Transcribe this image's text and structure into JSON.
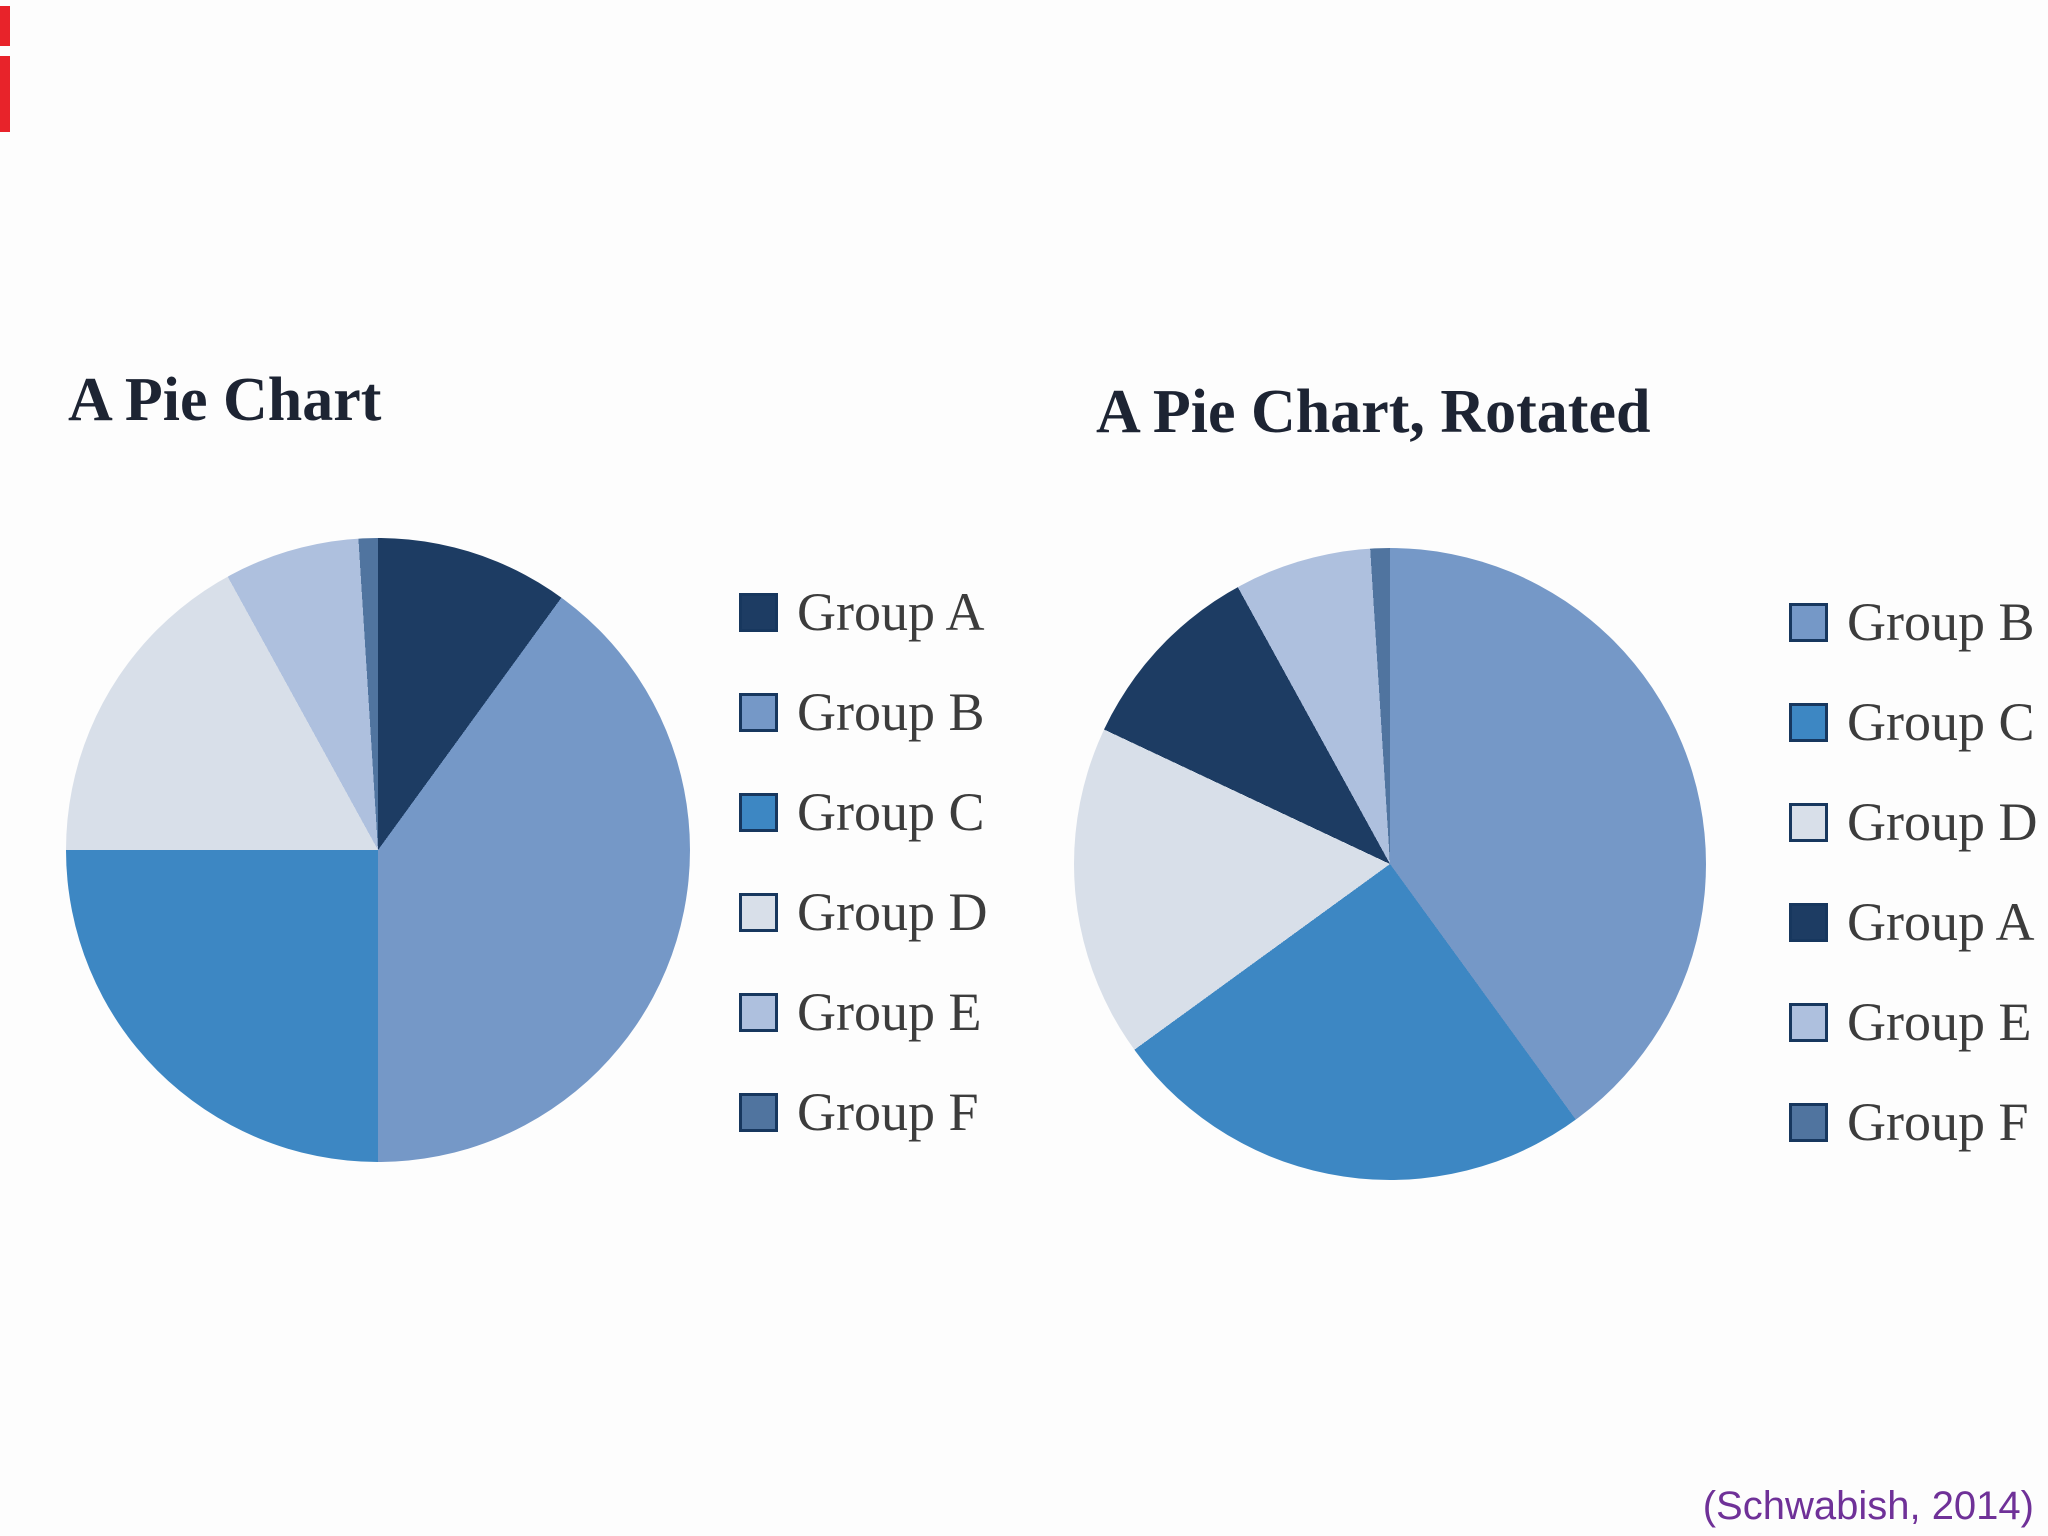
{
  "page": {
    "background_color": "#fdfdfd",
    "title_color": "#1d2433",
    "legend_text_color": "#3c3c3c",
    "swatch_border_color": "#17375e",
    "red_edge_mark_color": "#e8232a"
  },
  "citation": {
    "text": "(Schwabish, 2014)",
    "color": "#6f3198"
  },
  "chart_data": [
    {
      "type": "pie",
      "title": "A Pie Chart",
      "labels": [
        "Group A",
        "Group B",
        "Group C",
        "Group D",
        "Group E",
        "Group F"
      ],
      "values": [
        10,
        40,
        25,
        17,
        7,
        1
      ],
      "colors": [
        "#1d3c63",
        "#7598c7",
        "#3d87c3",
        "#d8dfe9",
        "#aec0de",
        "#50749f"
      ],
      "start_angle_deg": 0,
      "direction": "clockwise-from-12",
      "legend_position": "right",
      "legend_labels": [
        "Group A",
        "Group B",
        "Group C",
        "Group D",
        "Group E",
        "Group F"
      ]
    },
    {
      "type": "pie",
      "title": "A Pie Chart, Rotated",
      "labels": [
        "Group B",
        "Group C",
        "Group D",
        "Group A",
        "Group E",
        "Group F"
      ],
      "values": [
        40,
        25,
        17,
        10,
        7,
        1
      ],
      "colors": [
        "#7598c7",
        "#3d87c3",
        "#d8dfe9",
        "#1d3c63",
        "#aec0de",
        "#50749f"
      ],
      "start_angle_deg": 0,
      "direction": "clockwise-from-12",
      "legend_position": "right",
      "legend_labels": [
        "Group B",
        "Group C",
        "Group D",
        "Group A",
        "Group E",
        "Group F"
      ]
    }
  ]
}
